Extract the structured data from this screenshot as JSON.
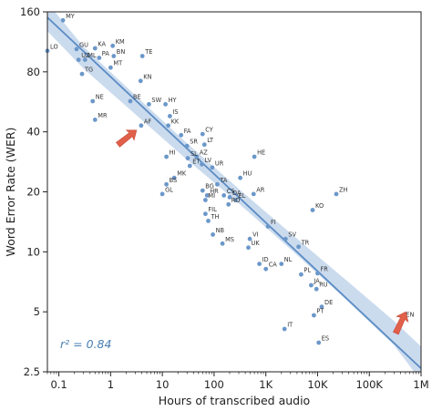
{
  "chart_data": {
    "type": "scatter",
    "title": "",
    "xlabel": "Hours of transcribed audio",
    "ylabel": "Word Error Rate (WER)",
    "x_scale": "log",
    "y_scale": "log",
    "xlim": [
      0.06,
      1000000
    ],
    "ylim": [
      2.5,
      160
    ],
    "x_ticks": [
      {
        "value": 0.1,
        "label": "0.1"
      },
      {
        "value": 1,
        "label": "1"
      },
      {
        "value": 10,
        "label": "10"
      },
      {
        "value": 100,
        "label": "100"
      },
      {
        "value": 1000,
        "label": "1K"
      },
      {
        "value": 10000,
        "label": "10K"
      },
      {
        "value": 100000,
        "label": "100K"
      },
      {
        "value": 1000000,
        "label": "1M"
      }
    ],
    "y_ticks": [
      {
        "value": 2.5,
        "label": "2.5"
      },
      {
        "value": 5,
        "label": "5"
      },
      {
        "value": 10,
        "label": "10"
      },
      {
        "value": 20,
        "label": "20"
      },
      {
        "value": 40,
        "label": "40"
      },
      {
        "value": 80,
        "label": "80"
      },
      {
        "value": 160,
        "label": "160"
      }
    ],
    "grid": false,
    "annotation": "r² = 0.84",
    "fit_line": {
      "x": [
        0.06,
        1000000
      ],
      "y": [
        150,
        2.6
      ]
    },
    "confidence_band": {
      "x": [
        0.06,
        0.3,
        3,
        30,
        300,
        3000,
        30000,
        300000,
        1000000
      ],
      "lower": [
        128,
        83,
        49,
        29,
        17.5,
        10.3,
        6.0,
        3.4,
        2.25
      ],
      "upper": [
        178,
        107,
        61,
        35,
        20.7,
        12.4,
        7.5,
        4.5,
        3.35
      ]
    },
    "points": [
      {
        "label": "MY",
        "x": 0.12,
        "y": 145
      },
      {
        "label": "LO",
        "x": 0.06,
        "y": 102
      },
      {
        "label": "GU",
        "x": 0.22,
        "y": 104
      },
      {
        "label": "KA",
        "x": 0.5,
        "y": 105
      },
      {
        "label": "KM",
        "x": 1.1,
        "y": 108
      },
      {
        "label": "UZ",
        "x": 0.24,
        "y": 92
      },
      {
        "label": "ML",
        "x": 0.32,
        "y": 92
      },
      {
        "label": "PA",
        "x": 0.6,
        "y": 94
      },
      {
        "label": "BN",
        "x": 1.15,
        "y": 96
      },
      {
        "label": "TE",
        "x": 4.1,
        "y": 96
      },
      {
        "label": "MT",
        "x": 1.0,
        "y": 84
      },
      {
        "label": "TG",
        "x": 0.28,
        "y": 78
      },
      {
        "label": "KN",
        "x": 3.8,
        "y": 72
      },
      {
        "label": "NE",
        "x": 0.45,
        "y": 57
      },
      {
        "label": "BE",
        "x": 2.4,
        "y": 57
      },
      {
        "label": "SW",
        "x": 5.5,
        "y": 55
      },
      {
        "label": "HY",
        "x": 11.5,
        "y": 55
      },
      {
        "label": "MR",
        "x": 0.5,
        "y": 46
      },
      {
        "label": "AF",
        "x": 3.9,
        "y": 43
      },
      {
        "label": "IS",
        "x": 14,
        "y": 48
      },
      {
        "label": "KK",
        "x": 13,
        "y": 43
      },
      {
        "label": "FA",
        "x": 23,
        "y": 38.5
      },
      {
        "label": "CY",
        "x": 60,
        "y": 39
      },
      {
        "label": "SR",
        "x": 30,
        "y": 34
      },
      {
        "label": "LT",
        "x": 65,
        "y": 34.5
      },
      {
        "label": "HI",
        "x": 12,
        "y": 30
      },
      {
        "label": "SL",
        "x": 31,
        "y": 29.5
      },
      {
        "label": "AZ",
        "x": 46,
        "y": 30
      },
      {
        "label": "LV",
        "x": 58,
        "y": 27.5
      },
      {
        "label": "ET",
        "x": 34,
        "y": 27
      },
      {
        "label": "UR",
        "x": 92,
        "y": 26.5
      },
      {
        "label": "HE",
        "x": 600,
        "y": 30
      },
      {
        "label": "MK",
        "x": 17,
        "y": 23.5
      },
      {
        "label": "BS",
        "x": 12,
        "y": 21.8
      },
      {
        "label": "HU",
        "x": 320,
        "y": 23.5
      },
      {
        "label": "TA",
        "x": 115,
        "y": 21.8
      },
      {
        "label": "BG",
        "x": 60,
        "y": 20.3
      },
      {
        "label": "GL",
        "x": 10,
        "y": 19.5
      },
      {
        "label": "HR",
        "x": 73,
        "y": 19.2
      },
      {
        "label": "CS",
        "x": 155,
        "y": 19.2
      },
      {
        "label": "DA",
        "x": 200,
        "y": 18.8
      },
      {
        "label": "AR",
        "x": 580,
        "y": 19.5
      },
      {
        "label": "ZH",
        "x": 23000,
        "y": 19.5
      },
      {
        "label": "MI",
        "x": 68,
        "y": 18.2
      },
      {
        "label": "EL",
        "x": 260,
        "y": 18.2
      },
      {
        "label": "RO",
        "x": 190,
        "y": 17.3
      },
      {
        "label": "KO",
        "x": 8000,
        "y": 16.2
      },
      {
        "label": "FIL",
        "x": 68,
        "y": 15.5
      },
      {
        "label": "TH",
        "x": 77,
        "y": 14.3
      },
      {
        "label": "FI",
        "x": 1100,
        "y": 13.4
      },
      {
        "label": "NB",
        "x": 95,
        "y": 12.2
      },
      {
        "label": "VI",
        "x": 490,
        "y": 11.6
      },
      {
        "label": "SV",
        "x": 2400,
        "y": 11.6
      },
      {
        "label": "MS",
        "x": 145,
        "y": 11.0
      },
      {
        "label": "UK",
        "x": 460,
        "y": 10.5
      },
      {
        "label": "TR",
        "x": 4300,
        "y": 10.6
      },
      {
        "label": "ID",
        "x": 750,
        "y": 8.7
      },
      {
        "label": "NL",
        "x": 2000,
        "y": 8.7
      },
      {
        "label": "CA",
        "x": 1000,
        "y": 8.2
      },
      {
        "label": "PL",
        "x": 4800,
        "y": 7.7
      },
      {
        "label": "FR",
        "x": 10000,
        "y": 7.8
      },
      {
        "label": "JA",
        "x": 7500,
        "y": 6.8
      },
      {
        "label": "RU",
        "x": 9500,
        "y": 6.5
      },
      {
        "label": "DE",
        "x": 12000,
        "y": 5.3
      },
      {
        "label": "PT",
        "x": 8500,
        "y": 4.8
      },
      {
        "label": "EN",
        "x": 450000,
        "y": 4.6
      },
      {
        "label": "IT",
        "x": 2300,
        "y": 4.1
      },
      {
        "label": "ES",
        "x": 10500,
        "y": 3.5
      }
    ],
    "colors": {
      "points": "#6b97c9",
      "fit_line": "#5b8cc4",
      "band": "#b9cfe8",
      "arrow": "#e0604a",
      "annotation": "#4a7fb3"
    }
  }
}
